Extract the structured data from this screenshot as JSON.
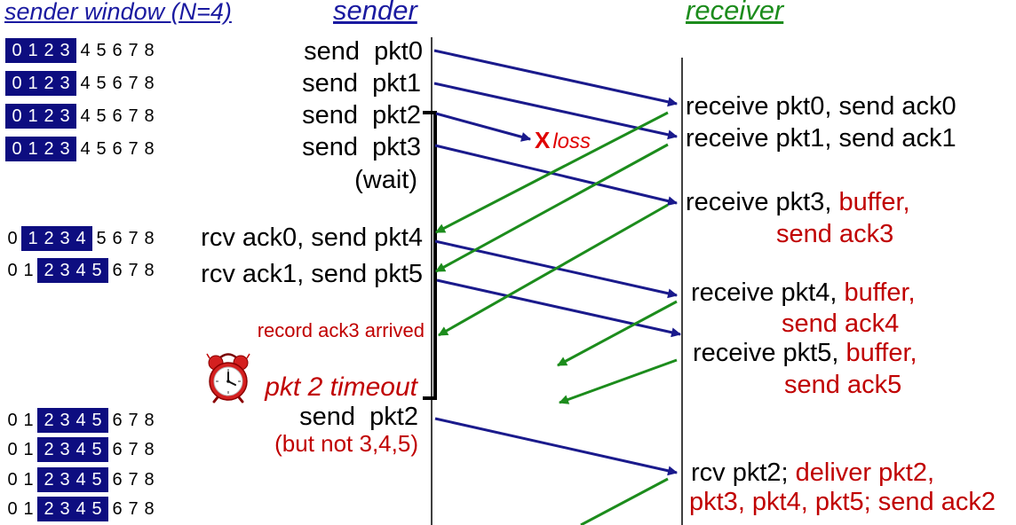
{
  "headers": {
    "sender_window": "sender window (N=4)",
    "sender": "sender",
    "receiver": "receiver"
  },
  "colors": {
    "packet_arrow": "#1a1a8c",
    "ack_arrow": "#1c8c1c",
    "window_highlight": "#0d0d80",
    "annotation_red": "#c00000",
    "loss_red": "#e00000",
    "sender_heading": "#1a1aa0",
    "receiver_heading": "#1c8c1c"
  },
  "sender_windows": {
    "size": 4,
    "sequence": [
      "0",
      "1",
      "2",
      "3",
      "4",
      "5",
      "6",
      "7",
      "8"
    ],
    "rows": [
      {
        "base": 0
      },
      {
        "base": 0
      },
      {
        "base": 0
      },
      {
        "base": 0
      },
      {
        "base": 1
      },
      {
        "base": 2
      },
      {
        "base": 2
      },
      {
        "base": 2
      },
      {
        "base": 2
      },
      {
        "base": 2
      }
    ]
  },
  "sender": {
    "send_pkt0": "send  pkt0",
    "send_pkt1": "send  pkt1",
    "send_pkt2": "send  pkt2",
    "send_pkt3": "send  pkt3",
    "wait": "(wait)",
    "rcv_ack0": "rcv ack0, send pkt4",
    "rcv_ack1": "rcv ack1, send pkt5",
    "record_ack3": "record ack3 arrived",
    "timeout": "pkt 2 timeout",
    "resend_pkt2": "send  pkt2",
    "resend_note": "(but not 3,4,5)"
  },
  "loss": {
    "mark": "X",
    "label": "loss"
  },
  "receiver": {
    "pkt0": {
      "text": "receive pkt0, send ack0"
    },
    "pkt1": {
      "text": "receive pkt1, send ack1"
    },
    "pkt3": {
      "text": "receive pkt3, ",
      "action": "buffer,",
      "ack": "send ack3"
    },
    "pkt4": {
      "text": "receive pkt4, ",
      "action": "buffer,",
      "ack": "send ack4"
    },
    "pkt5": {
      "text": "receive pkt5, ",
      "action": "buffer,",
      "ack": "send ack5"
    },
    "pkt2": {
      "text": "rcv pkt2; ",
      "action": "deliver pkt2,",
      "action_cont": "pkt3, pkt4, pkt5; send ack2"
    }
  },
  "icons": {
    "timer": "alarm-clock-icon"
  }
}
